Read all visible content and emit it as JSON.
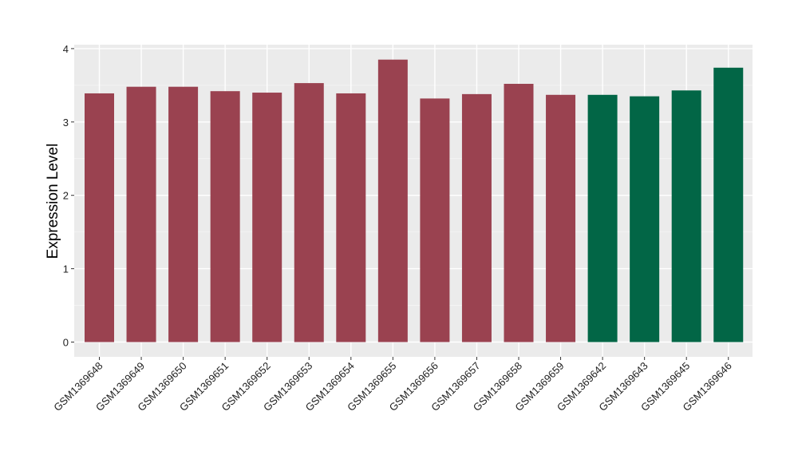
{
  "chart_data": {
    "type": "bar",
    "ylabel": "Expression Level",
    "xlabel": "",
    "title": "",
    "ylim": [
      0,
      4
    ],
    "y_ticks": [
      "0",
      "1",
      "2",
      "3",
      "4"
    ],
    "grid": true,
    "panel_background": "#ebebeb",
    "categories": [
      "GSM1369648",
      "GSM1369649",
      "GSM1369650",
      "GSM1369651",
      "GSM1369652",
      "GSM1369653",
      "GSM1369654",
      "GSM1369655",
      "GSM1369656",
      "GSM1369657",
      "GSM1369658",
      "GSM1369659",
      "GSM1369642",
      "GSM1369643",
      "GSM1369645",
      "GSM1369646"
    ],
    "values": [
      3.39,
      3.48,
      3.48,
      3.42,
      3.4,
      3.53,
      3.39,
      3.85,
      3.32,
      3.38,
      3.52,
      3.37,
      3.37,
      3.35,
      3.43,
      3.74
    ],
    "bar_colors": [
      "#9a4250",
      "#9a4250",
      "#9a4250",
      "#9a4250",
      "#9a4250",
      "#9a4250",
      "#9a4250",
      "#9a4250",
      "#9a4250",
      "#9a4250",
      "#9a4250",
      "#9a4250",
      "#026646",
      "#026646",
      "#026646",
      "#026646"
    ]
  }
}
